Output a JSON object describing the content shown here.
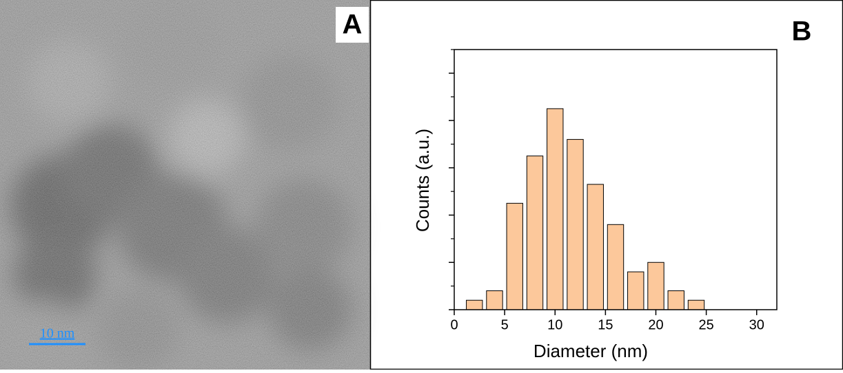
{
  "panel_a": {
    "label": "A",
    "scale_bar": "10 nm"
  },
  "chart_data": {
    "type": "bar",
    "panel_label": "B",
    "x_label": "Diameter (nm)",
    "y_label": "Counts (a.u.)",
    "x": [
      2,
      4,
      6,
      8,
      10,
      12,
      14,
      16,
      18,
      20,
      22,
      24
    ],
    "values": [
      0.4,
      0.8,
      4.5,
      6.5,
      8.5,
      7.2,
      5.3,
      3.6,
      1.6,
      2.0,
      0.8,
      0.4
    ],
    "bar_width": 1.6,
    "color": "#fcc89b",
    "xlim": [
      0,
      32
    ],
    "xticks": [
      0,
      5,
      10,
      15,
      20,
      25,
      30
    ],
    "ylim": [
      0,
      11
    ],
    "yticks": [
      0,
      2,
      4,
      6,
      8,
      10
    ],
    "yminorticks": [
      1,
      3,
      5,
      7,
      9,
      11
    ],
    "show_ytick_labels": false
  }
}
